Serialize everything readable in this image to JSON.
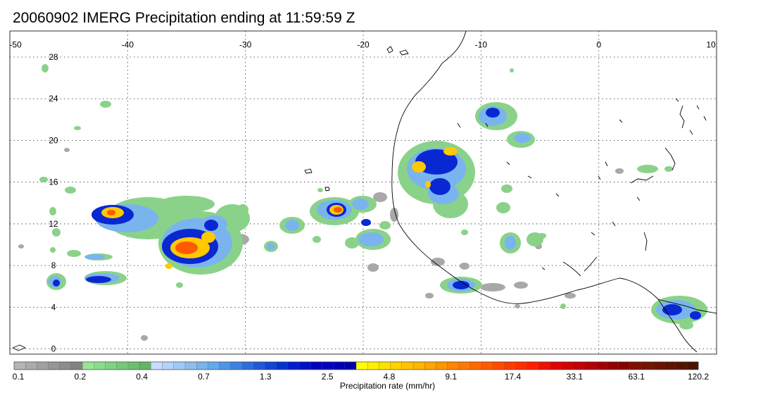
{
  "map": {
    "title": "20060902 IMERG Precipitation ending at 11:59:59 Z",
    "lon_range": [
      -50,
      10
    ],
    "lat_range": [
      -0.5,
      30.5
    ],
    "lon_labels": [
      "-50",
      "-40",
      "-30",
      "-20",
      "-10",
      "0",
      "10"
    ],
    "lon_values": [
      -50,
      -40,
      -30,
      -20,
      -10,
      0,
      10
    ],
    "lat_labels": [
      "28",
      "24",
      "20",
      "16",
      "12",
      "8",
      "4",
      "0"
    ],
    "lat_values": [
      28,
      24,
      20,
      16,
      12,
      8,
      4,
      0
    ],
    "gridlines": true
  },
  "colorbar": {
    "units_label": "Precipitation rate (mm/hr)",
    "tick_labels": [
      "0.1",
      "0.2",
      "0.4",
      "0.7",
      "1.3",
      "2.5",
      "4.8",
      "9.1",
      "17.4",
      "33.1",
      "63.1",
      "120.2"
    ],
    "colors": [
      "#b4b4b4",
      "#aaaaaa",
      "#a0a0a0",
      "#969696",
      "#8c8c8c",
      "#828282",
      "#96e696",
      "#8cdc8c",
      "#82d282",
      "#78c878",
      "#6ebe6e",
      "#64b464",
      "#c8dcff",
      "#b4d2fa",
      "#a0c8f5",
      "#8cbef0",
      "#78b4eb",
      "#64aaeb",
      "#4b96e6",
      "#3c82e1",
      "#2d6edc",
      "#1e5ad7",
      "#0f46d2",
      "#0032d2",
      "#001ecd",
      "#000fc8",
      "#0000c3",
      "#0000be",
      "#0000b4",
      "#0000aa",
      "#ffff00",
      "#fff000",
      "#ffe100",
      "#ffd200",
      "#ffc300",
      "#ffb400",
      "#ffa500",
      "#ff9600",
      "#ff8700",
      "#ff7800",
      "#ff6900",
      "#ff5a00",
      "#ff4b00",
      "#ff3c00",
      "#ff2d00",
      "#ff1e00",
      "#f00f00",
      "#e10000",
      "#d20000",
      "#c30000",
      "#b40000",
      "#a50000",
      "#960000",
      "#870000",
      "#7d0f00",
      "#731400",
      "#691400",
      "#5f1400",
      "#551400",
      "#4b1400"
    ]
  }
}
